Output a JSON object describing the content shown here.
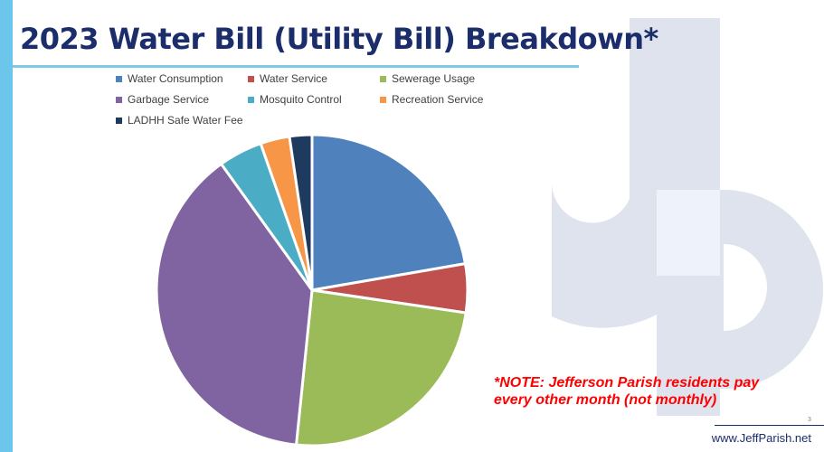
{
  "slide": {
    "title": "2023 Water Bill (Utility Bill) Breakdown*",
    "note_line1": "*NOTE: Jefferson Parish residents pay",
    "note_line2": "every other month (not monthly)",
    "page_number": "3",
    "footer_url": "www.JeffParish.net"
  },
  "colors": {
    "left_bar": "#6cc5ea",
    "title": "#1c2d6b",
    "logo": "#dfe3ee",
    "note": "#ff0000"
  },
  "chart_data": {
    "type": "pie",
    "title": "",
    "legend_position": "top",
    "categories": [
      "Water Consumption",
      "Water Service",
      "Sewerage Usage",
      "Garbage Service",
      "Mosquito Control",
      "Recreation Service",
      "LADHH Safe Water Fee"
    ],
    "values": [
      22,
      5,
      24,
      38,
      4.5,
      3,
      2.3
    ],
    "colors": [
      "#4f81bd",
      "#c0504d",
      "#9bbb59",
      "#8064a2",
      "#4bacc6",
      "#f79646",
      "#1f3a5f"
    ]
  }
}
